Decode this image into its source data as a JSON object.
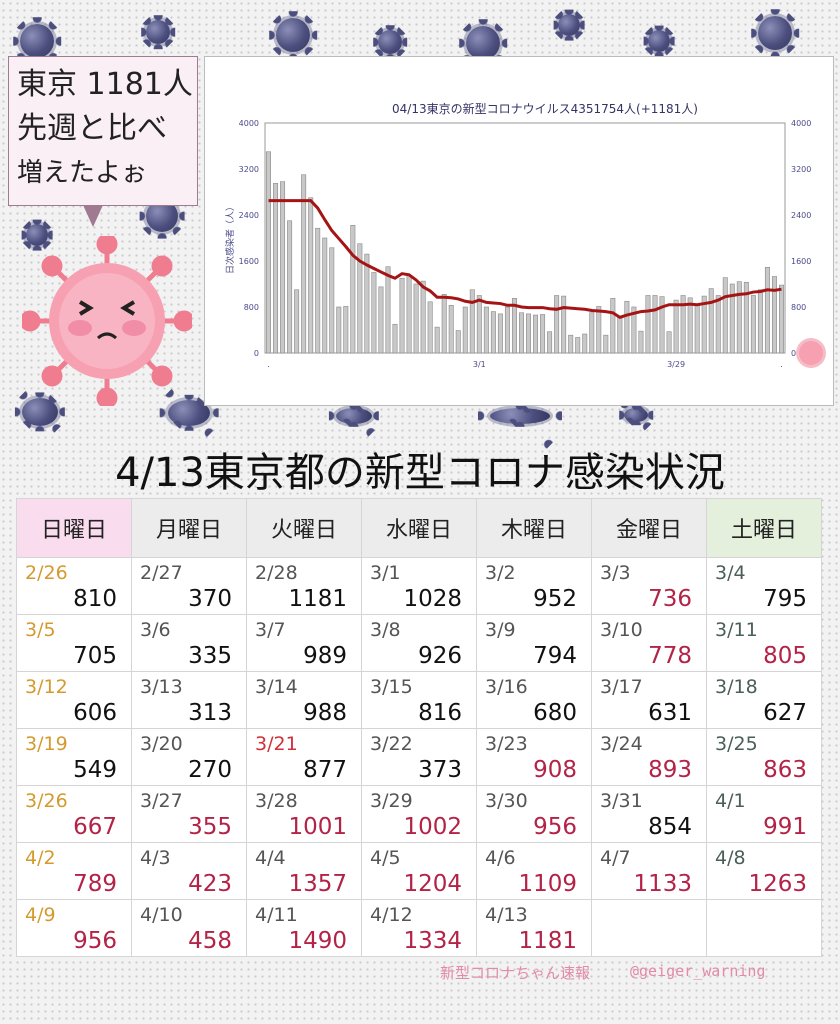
{
  "speech": {
    "line1": "東京 1181人",
    "line2": "先週と比べ",
    "line3": "増えたよぉ"
  },
  "chart_data": {
    "type": "bar",
    "title": "04/13東京の新型コロナウイルス4351754人(+1181人)",
    "ylabel": "日次感染者（人）",
    "ylim": [
      0,
      4000
    ],
    "yticks": [
      0,
      800,
      1600,
      2400,
      3200,
      4000
    ],
    "ytick_labels": [
      "0",
      "800",
      "1600",
      "2400",
      "3200",
      "4000"
    ],
    "xtick_labels": [
      {
        "index": 0,
        "label": "."
      },
      {
        "index": 30,
        "label": "3/1"
      },
      {
        "index": 58,
        "label": "3/29"
      },
      {
        "index": 73,
        "label": "."
      }
    ],
    "grid": false,
    "series": [
      {
        "kind": "bar",
        "values": [
          3500,
          2950,
          2980,
          2300,
          1100,
          3100,
          2700,
          2170,
          2000,
          1830,
          800,
          810,
          2220,
          1900,
          1720,
          1400,
          1150,
          1500,
          500,
          1300,
          1350,
          1200,
          1250,
          890,
          450,
          1020,
          830,
          390,
          800,
          1100,
          1000,
          800,
          720,
          680,
          800,
          950,
          700,
          680,
          660,
          670,
          370,
          1000,
          990,
          310,
          270,
          330,
          700,
          810,
          310,
          950,
          620,
          900,
          800,
          380,
          1000,
          1000,
          980,
          370,
          920,
          1000,
          960,
          850,
          990,
          1120,
          1000,
          1310,
          1200,
          1240,
          1230,
          1000,
          1100,
          1490,
          1330,
          1181
        ]
      },
      {
        "kind": "line",
        "values": [
          2650,
          2650,
          2650,
          2650,
          2650,
          2650,
          2650,
          2520,
          2320,
          2130,
          1990,
          1850,
          1700,
          1600,
          1530,
          1470,
          1410,
          1350,
          1300,
          1380,
          1360,
          1270,
          1150,
          1080,
          970,
          970,
          960,
          940,
          900,
          880,
          920,
          880,
          870,
          860,
          830,
          830,
          800,
          790,
          790,
          790,
          770,
          760,
          790,
          780,
          770,
          760,
          740,
          730,
          720,
          700,
          620,
          660,
          690,
          720,
          730,
          750,
          800,
          840,
          840,
          840,
          850,
          840,
          860,
          880,
          920,
          980,
          1000,
          1020,
          1030,
          1060,
          1070,
          1100,
          1090,
          1110
        ]
      }
    ]
  },
  "calendar": {
    "title": "4/13東京都の新型コロナ感染状況",
    "headers": [
      "日曜日",
      "月曜日",
      "火曜日",
      "水曜日",
      "木曜日",
      "金曜日",
      "土曜日"
    ],
    "rows": [
      [
        {
          "date": "2/26",
          "count": "810",
          "dc": "sun",
          "cc": ""
        },
        {
          "date": "2/27",
          "count": "370",
          "dc": "",
          "cc": ""
        },
        {
          "date": "2/28",
          "count": "1181",
          "dc": "",
          "cc": ""
        },
        {
          "date": "3/1",
          "count": "1028",
          "dc": "",
          "cc": ""
        },
        {
          "date": "3/2",
          "count": "952",
          "dc": "",
          "cc": ""
        },
        {
          "date": "3/3",
          "count": "736",
          "dc": "",
          "cc": "up"
        },
        {
          "date": "3/4",
          "count": "795",
          "dc": "sat",
          "cc": ""
        }
      ],
      [
        {
          "date": "3/5",
          "count": "705",
          "dc": "sun",
          "cc": ""
        },
        {
          "date": "3/6",
          "count": "335",
          "dc": "",
          "cc": ""
        },
        {
          "date": "3/7",
          "count": "989",
          "dc": "",
          "cc": ""
        },
        {
          "date": "3/8",
          "count": "926",
          "dc": "",
          "cc": ""
        },
        {
          "date": "3/9",
          "count": "794",
          "dc": "",
          "cc": ""
        },
        {
          "date": "3/10",
          "count": "778",
          "dc": "",
          "cc": "up"
        },
        {
          "date": "3/11",
          "count": "805",
          "dc": "sat",
          "cc": "up"
        }
      ],
      [
        {
          "date": "3/12",
          "count": "606",
          "dc": "sun",
          "cc": ""
        },
        {
          "date": "3/13",
          "count": "313",
          "dc": "",
          "cc": ""
        },
        {
          "date": "3/14",
          "count": "988",
          "dc": "",
          "cc": ""
        },
        {
          "date": "3/15",
          "count": "816",
          "dc": "",
          "cc": ""
        },
        {
          "date": "3/16",
          "count": "680",
          "dc": "",
          "cc": ""
        },
        {
          "date": "3/17",
          "count": "631",
          "dc": "",
          "cc": ""
        },
        {
          "date": "3/18",
          "count": "627",
          "dc": "sat",
          "cc": ""
        }
      ],
      [
        {
          "date": "3/19",
          "count": "549",
          "dc": "sun",
          "cc": ""
        },
        {
          "date": "3/20",
          "count": "270",
          "dc": "",
          "cc": ""
        },
        {
          "date": "3/21",
          "count": "877",
          "dc": "hol",
          "cc": ""
        },
        {
          "date": "3/22",
          "count": "373",
          "dc": "",
          "cc": ""
        },
        {
          "date": "3/23",
          "count": "908",
          "dc": "",
          "cc": "up"
        },
        {
          "date": "3/24",
          "count": "893",
          "dc": "",
          "cc": "up"
        },
        {
          "date": "3/25",
          "count": "863",
          "dc": "sat",
          "cc": "up"
        }
      ],
      [
        {
          "date": "3/26",
          "count": "667",
          "dc": "sun",
          "cc": "up"
        },
        {
          "date": "3/27",
          "count": "355",
          "dc": "",
          "cc": "up"
        },
        {
          "date": "3/28",
          "count": "1001",
          "dc": "",
          "cc": "up"
        },
        {
          "date": "3/29",
          "count": "1002",
          "dc": "",
          "cc": "up"
        },
        {
          "date": "3/30",
          "count": "956",
          "dc": "",
          "cc": "up"
        },
        {
          "date": "3/31",
          "count": "854",
          "dc": "",
          "cc": ""
        },
        {
          "date": "4/1",
          "count": "991",
          "dc": "sat",
          "cc": "up"
        }
      ],
      [
        {
          "date": "4/2",
          "count": "789",
          "dc": "sun",
          "cc": "up"
        },
        {
          "date": "4/3",
          "count": "423",
          "dc": "",
          "cc": "up"
        },
        {
          "date": "4/4",
          "count": "1357",
          "dc": "",
          "cc": "up"
        },
        {
          "date": "4/5",
          "count": "1204",
          "dc": "",
          "cc": "up"
        },
        {
          "date": "4/6",
          "count": "1109",
          "dc": "",
          "cc": "up"
        },
        {
          "date": "4/7",
          "count": "1133",
          "dc": "",
          "cc": "up"
        },
        {
          "date": "4/8",
          "count": "1263",
          "dc": "sat",
          "cc": "up"
        }
      ],
      [
        {
          "date": "4/9",
          "count": "956",
          "dc": "sun",
          "cc": "up"
        },
        {
          "date": "4/10",
          "count": "458",
          "dc": "",
          "cc": "up"
        },
        {
          "date": "4/11",
          "count": "1490",
          "dc": "",
          "cc": "up"
        },
        {
          "date": "4/12",
          "count": "1334",
          "dc": "",
          "cc": "up"
        },
        {
          "date": "4/13",
          "count": "1181",
          "dc": "",
          "cc": "up"
        },
        {
          "date": "",
          "count": "",
          "dc": "",
          "cc": ""
        },
        {
          "date": "",
          "count": "",
          "dc": "",
          "cc": ""
        }
      ]
    ]
  },
  "footer": {
    "brand": "新型コロナちゃん速報",
    "handle": "@geiger_warning"
  },
  "colors": {
    "bar": "#c8c8c8",
    "bar_stroke": "#888888",
    "line": "#a51414",
    "increase": "#b32347",
    "sunday": "#d49a2e",
    "holiday": "#d0303a",
    "axis_text": "#4a4a8a"
  }
}
